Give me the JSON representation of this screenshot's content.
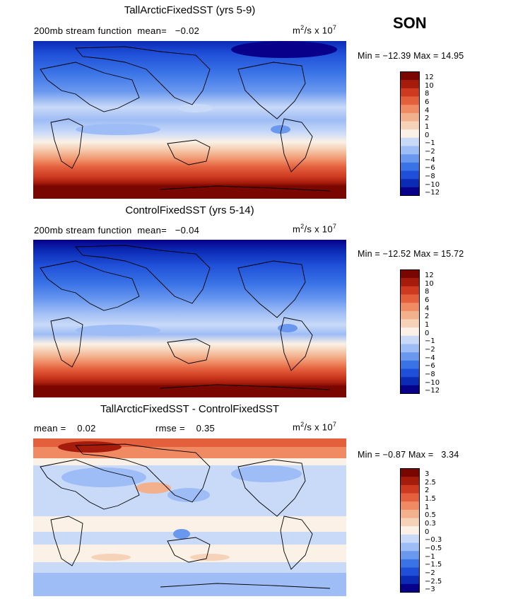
{
  "season": "SON",
  "colors": {
    "scale": [
      "#08008a",
      "#0b2bb5",
      "#1f4fd8",
      "#3a73e6",
      "#6a98ef",
      "#9ebcf5",
      "#c9daf8",
      "#fbf1e6",
      "#f6d2b9",
      "#f3b08d",
      "#ef8a63",
      "#e4603d",
      "#cd3a1f",
      "#a51c0c",
      "#7a0600"
    ]
  },
  "chart_data": [
    {
      "type": "heatmap",
      "title": "TallArcticFixedSST (yrs 5-9)",
      "variable": "200mb stream function",
      "mean_label": "mean=",
      "mean": "−0.02",
      "units_base": "m",
      "units_sup": "2",
      "units_mid": "/s x 10",
      "units_exp": "7",
      "min_label": "Min =",
      "min": "−12.39",
      "max_label": "Max =",
      "max": "14.95",
      "levels": [
        "12",
        "10",
        "8",
        "6",
        "4",
        "2",
        "1",
        "0",
        "−1",
        "−2",
        "−4",
        "−6",
        "−8",
        "−10",
        "−12"
      ],
      "field": "zonal bands: strongly negative north, strongly positive south"
    },
    {
      "type": "heatmap",
      "title": "ControlFixedSST (yrs 5-14)",
      "variable": "200mb stream function",
      "mean_label": "mean=",
      "mean": "−0.04",
      "units_base": "m",
      "units_sup": "2",
      "units_mid": "/s x 10",
      "units_exp": "7",
      "min_label": "Min =",
      "min": "−12.52",
      "max_label": "Max =",
      "max": "15.72",
      "levels": [
        "12",
        "10",
        "8",
        "6",
        "4",
        "2",
        "1",
        "0",
        "−1",
        "−2",
        "−4",
        "−6",
        "−8",
        "−10",
        "−12"
      ],
      "field": "zonal bands: strongly negative north, strongly positive south"
    },
    {
      "type": "heatmap",
      "title": "TallArcticFixedSST - ControlFixedSST",
      "mean_label": "mean =",
      "mean": "0.02",
      "rmse_label": "rmse =",
      "rmse": "0.35",
      "units_base": "m",
      "units_sup": "2",
      "units_mid": "/s x 10",
      "units_exp": "7",
      "min_label": "Min =",
      "min": "−0.87",
      "max_label": "Max =",
      "max": "3.34",
      "levels": [
        "3",
        "2.5",
        "2",
        "1.5",
        "1",
        "0.5",
        "0.3",
        "0",
        "−0.3",
        "−0.5",
        "−1",
        "−1.5",
        "−2",
        "−2.5",
        "−3"
      ],
      "field": "difference: positive arctic band, weak mixed elsewhere"
    }
  ]
}
